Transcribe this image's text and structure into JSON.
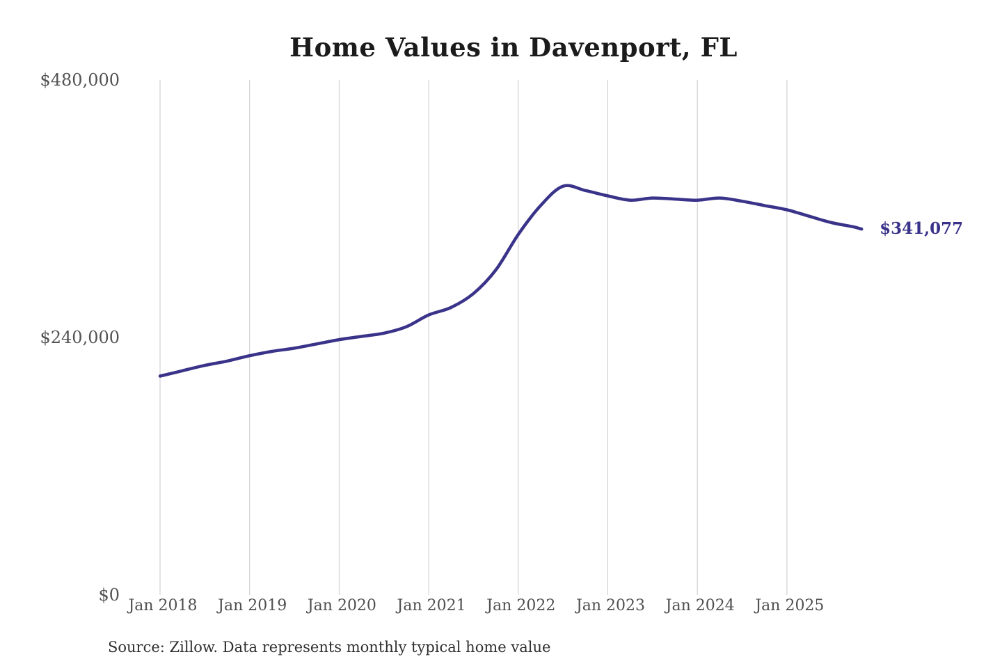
{
  "chart": {
    "title": "Home Values in Davenport, FL",
    "end_label": "$341,077",
    "source_note": "Source: Zillow. Data represents monthly typical home value",
    "y_ticks": [
      "$480,000",
      "$240,000",
      "$0"
    ],
    "x_ticks": [
      "Jan 2018",
      "Jan 2019",
      "Jan 2020",
      "Jan 2021",
      "Jan 2022",
      "Jan 2023",
      "Jan 2024",
      "Jan 2025"
    ],
    "colors": {
      "line": "#3a338a",
      "end_label_text": "#3a338a",
      "gridline": "#c9c9c9",
      "tick_text": "#525252",
      "title_text": "#1b1b1b",
      "source_text": "#2f2f2f"
    }
  },
  "chart_data": {
    "type": "line",
    "title": "Home Values in Davenport, FL",
    "xlabel": "",
    "ylabel": "",
    "ylim": [
      0,
      480000
    ],
    "y_tick_values": [
      480000,
      240000,
      0
    ],
    "grid": "vertical-yearly-only",
    "legend": "none",
    "series_name": "Typical home value (monthly)",
    "x": [
      "Jan 2018",
      "Apr 2018",
      "Jul 2018",
      "Oct 2018",
      "Jan 2019",
      "Apr 2019",
      "Jul 2019",
      "Oct 2019",
      "Jan 2020",
      "Apr 2020",
      "Jul 2020",
      "Oct 2020",
      "Jan 2021",
      "Apr 2021",
      "Jul 2021",
      "Oct 2021",
      "Jan 2022",
      "Apr 2022",
      "Jul 2022",
      "Oct 2022",
      "Jan 2023",
      "Apr 2023",
      "Jul 2023",
      "Oct 2023",
      "Jan 2024",
      "Apr 2024",
      "Jul 2024",
      "Oct 2024",
      "Jan 2025",
      "Apr 2025",
      "Jul 2025",
      "Oct 2025",
      "Nov 2025"
    ],
    "values": [
      204000,
      209000,
      214000,
      218000,
      223000,
      227000,
      230000,
      234000,
      238000,
      241000,
      244000,
      250000,
      261000,
      268000,
      281000,
      303000,
      336000,
      363000,
      381000,
      377000,
      372000,
      368000,
      370000,
      369000,
      368000,
      370000,
      367000,
      363000,
      359000,
      353000,
      347000,
      343000,
      341077
    ],
    "final_value": 341077,
    "final_value_label": "$341,077"
  }
}
